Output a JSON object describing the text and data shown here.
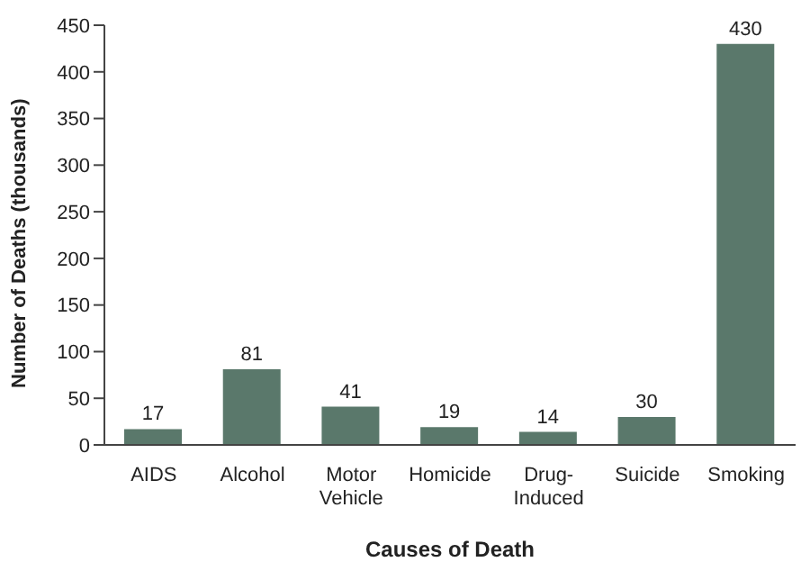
{
  "chart_data": {
    "type": "bar",
    "xlabel": "Causes of Death",
    "ylabel": "Number of Deaths (thousands)",
    "categories": [
      "AIDS",
      "Alcohol",
      "Motor Vehicle",
      "Homicide",
      "Drug-Induced",
      "Suicide",
      "Smoking"
    ],
    "values": [
      17,
      81,
      41,
      19,
      14,
      30,
      430
    ],
    "color": "#5a786b",
    "ylim": [
      0,
      450
    ],
    "yticks": [
      0,
      50,
      100,
      150,
      200,
      250,
      300,
      350,
      400,
      450
    ],
    "grid": false,
    "data_labels": true
  }
}
